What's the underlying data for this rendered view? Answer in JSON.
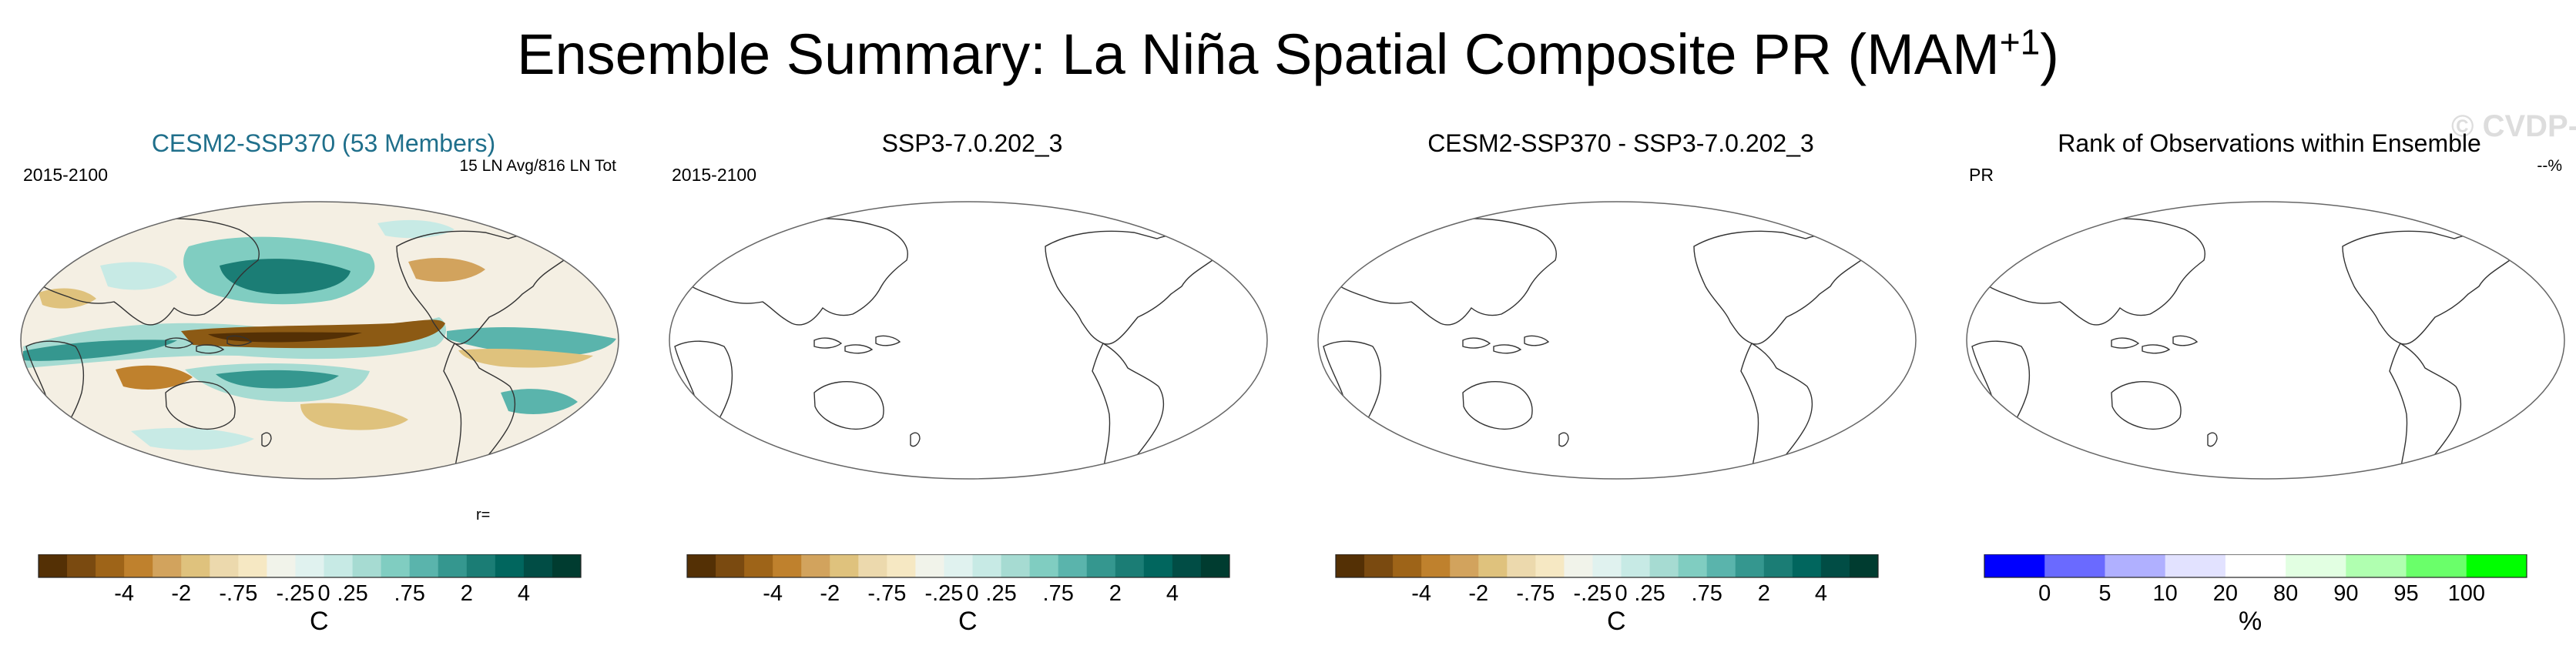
{
  "title_main": "Ensemble Summary: La Niña Spatial Composite PR (MAM",
  "title_sup": "+1",
  "title_end": ")",
  "copyright": "© CVDP-LE",
  "panels": [
    {
      "title": "CESM2-SSP370 (53 Members)",
      "title_color": "#1f6f8b",
      "left_label": "2015-2100",
      "right_label": "15 LN Avg/816 LN Tot",
      "footer": "r=",
      "filled": true
    },
    {
      "title": "SSP3-7.0.202_3",
      "title_color": "#000000",
      "left_label": "2015-2100",
      "right_label": "",
      "footer": "",
      "filled": false
    },
    {
      "title": "CESM2-SSP370 - SSP3-7.0.202_3",
      "title_color": "#000000",
      "left_label": "",
      "right_label": "",
      "footer": "",
      "filled": false
    },
    {
      "title": "Rank of Observations within Ensemble",
      "title_color": "#000000",
      "left_label": "PR",
      "right_label": "--%",
      "footer": "",
      "filled": false
    }
  ],
  "colorbar_diverging": {
    "colors": [
      "#543005",
      "#7a4a10",
      "#9e6418",
      "#bf812d",
      "#d2a35d",
      "#dfc27d",
      "#ecd9ad",
      "#f6e8c3",
      "#f1f3ea",
      "#e0f2ef",
      "#c7eae5",
      "#a6dbd2",
      "#80cdc1",
      "#5ab4ac",
      "#35978f",
      "#1b7d75",
      "#01665e",
      "#014d45",
      "#003c30"
    ],
    "tick_labels": [
      "-4",
      "-2",
      "-.75",
      "-.25",
      "0",
      ".25",
      ".75",
      "2",
      "4"
    ],
    "unit": "C"
  },
  "colorbar_rank": {
    "colors": [
      "#0000ff",
      "#6a6aff",
      "#b0b0ff",
      "#e2e2ff",
      "#ffffff",
      "#e2ffe2",
      "#b0ffb0",
      "#6aff6a",
      "#00ff00"
    ],
    "tick_labels": [
      "0",
      "5",
      "10",
      "20",
      "80",
      "90",
      "95",
      "100"
    ],
    "unit": "%"
  },
  "chart_data": {
    "type": "heatmap",
    "title": "Ensemble Summary: La Niña Spatial Composite PR (MAM+1)",
    "panels": [
      "CESM2-SSP370 (53 Members)",
      "SSP3-7.0.202_3",
      "CESM2-SSP370 - SSP3-7.0.202_3",
      "Rank of Observations within Ensemble"
    ],
    "period": "2015-2100",
    "composite_info": "15 LN Avg/816 LN Tot",
    "diverging_levels_C": [
      -4,
      -2,
      -0.75,
      -0.25,
      0,
      0.25,
      0.75,
      2,
      4
    ],
    "rank_levels_percent": [
      0,
      5,
      10,
      20,
      80,
      90,
      95,
      100
    ]
  }
}
